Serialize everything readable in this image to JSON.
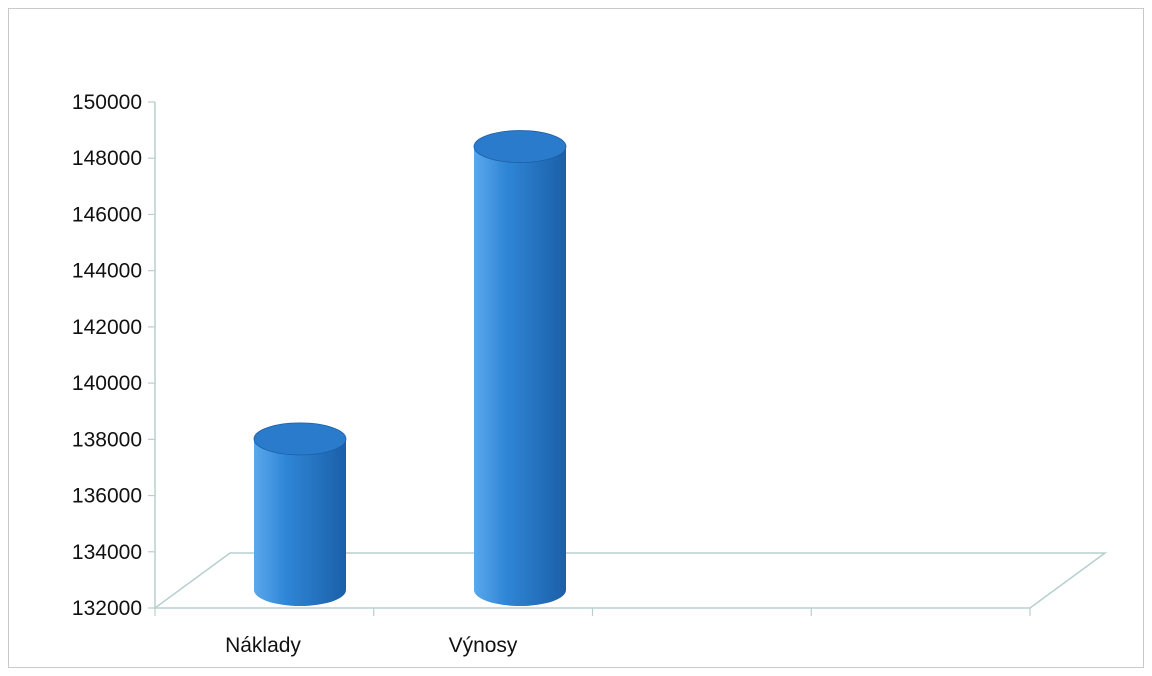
{
  "chart_data": {
    "type": "bar",
    "style": "3d-cylinder",
    "categories": [
      "Náklady",
      "Výnosy"
    ],
    "values": [
      138300,
      148700
    ],
    "ylim": [
      132000,
      150000
    ],
    "yticks": [
      132000,
      134000,
      136000,
      138000,
      140000,
      142000,
      144000,
      146000,
      148000,
      150000
    ],
    "ytick_labels": [
      "132000",
      "134000",
      "136000",
      "138000",
      "140000",
      "142000",
      "144000",
      "146000",
      "148000",
      "150000"
    ],
    "grid": false,
    "legend": "none",
    "title": "",
    "xlabel": "",
    "ylabel": "",
    "colors": {
      "bar": "#2f86d6",
      "bar_dark": "#1b5fa8",
      "bar_light": "#5aa8ec",
      "bar_top": "#2a7bcc",
      "axis": "#b7cfcf"
    }
  }
}
